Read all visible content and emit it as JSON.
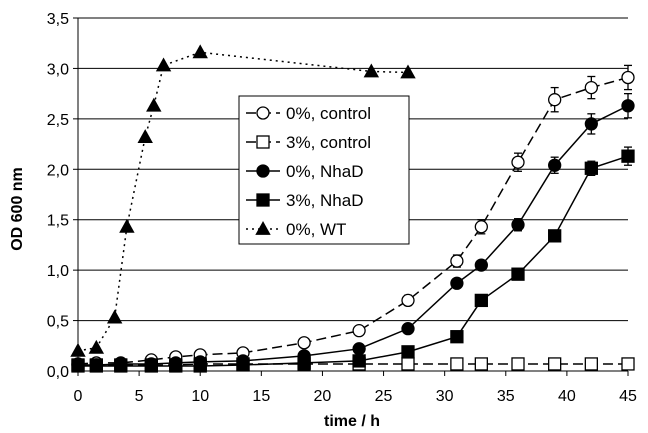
{
  "chart_data": {
    "type": "line",
    "title": "",
    "xlabel": "time / h",
    "ylabel": "OD 600 nm",
    "xlim": [
      0,
      45
    ],
    "ylim": [
      0,
      3.5
    ],
    "x_ticks": [
      0,
      5,
      10,
      15,
      20,
      25,
      30,
      35,
      40,
      45
    ],
    "y_ticks": [
      0,
      0.5,
      1.0,
      1.5,
      2.0,
      2.5,
      3.0,
      3.5
    ],
    "x_tick_labels": [
      "0",
      "5",
      "10",
      "15",
      "20",
      "25",
      "30",
      "35",
      "40",
      "45"
    ],
    "y_tick_labels": [
      "0,0",
      "0,5",
      "1,0",
      "1,5",
      "2,0",
      "2,5",
      "3,0",
      "3,5"
    ],
    "grid": "horizontal",
    "legend_position": "center",
    "series": [
      {
        "name": "0%, control",
        "marker": "circle-open",
        "line": "long-dash",
        "x": [
          0,
          1.5,
          3.5,
          6,
          8,
          10,
          13.5,
          18.5,
          23,
          27,
          31,
          33,
          36,
          39,
          42,
          45
        ],
        "y": [
          0.07,
          0.08,
          0.08,
          0.11,
          0.14,
          0.16,
          0.18,
          0.28,
          0.4,
          0.7,
          1.09,
          1.43,
          2.07,
          2.69,
          2.81,
          2.91
        ],
        "err": [
          0,
          0,
          0,
          0,
          0,
          0,
          0,
          0,
          0.03,
          0.05,
          0.06,
          0.07,
          0.09,
          0.12,
          0.11,
          0.12
        ]
      },
      {
        "name": "3%, control",
        "marker": "square-open",
        "line": "long-dash",
        "x": [
          0,
          1.5,
          3.5,
          6,
          8,
          10,
          13.5,
          18.5,
          23,
          27,
          31,
          33,
          36,
          39,
          42,
          45
        ],
        "y": [
          0.06,
          0.06,
          0.06,
          0.06,
          0.06,
          0.07,
          0.07,
          0.07,
          0.07,
          0.07,
          0.07,
          0.07,
          0.07,
          0.07,
          0.07,
          0.07
        ]
      },
      {
        "name": "0%, NhaD",
        "marker": "circle-filled",
        "line": "solid",
        "x": [
          0,
          1.5,
          3.5,
          6,
          8,
          10,
          13.5,
          18.5,
          23,
          27,
          31,
          33,
          36,
          39,
          42,
          45
        ],
        "y": [
          0.06,
          0.06,
          0.07,
          0.07,
          0.08,
          0.09,
          0.1,
          0.15,
          0.22,
          0.42,
          0.87,
          1.05,
          1.45,
          2.04,
          2.45,
          2.63
        ],
        "err": [
          0,
          0,
          0,
          0,
          0,
          0,
          0,
          0,
          0,
          0.03,
          0.04,
          0.04,
          0.06,
          0.08,
          0.1,
          0.12
        ]
      },
      {
        "name": "3%, NhaD",
        "marker": "square-filled",
        "line": "solid",
        "x": [
          0,
          1.5,
          3.5,
          6,
          8,
          10,
          13.5,
          18.5,
          23,
          27,
          31,
          33,
          36,
          39,
          42,
          45
        ],
        "y": [
          0.05,
          0.05,
          0.05,
          0.05,
          0.05,
          0.05,
          0.06,
          0.08,
          0.1,
          0.19,
          0.34,
          0.7,
          0.96,
          1.34,
          2.01,
          2.13
        ],
        "err": [
          0,
          0,
          0,
          0,
          0,
          0,
          0,
          0,
          0,
          0,
          0,
          0,
          0,
          0.04,
          0.07,
          0.09
        ]
      },
      {
        "name": "0%, WT",
        "marker": "triangle-filled",
        "line": "dotted",
        "x": [
          0,
          1.5,
          3,
          4,
          5.5,
          6.2,
          7,
          10,
          24,
          27
        ],
        "y": [
          0.2,
          0.23,
          0.53,
          1.43,
          2.32,
          2.63,
          3.03,
          3.16,
          2.97,
          2.96
        ]
      }
    ]
  }
}
